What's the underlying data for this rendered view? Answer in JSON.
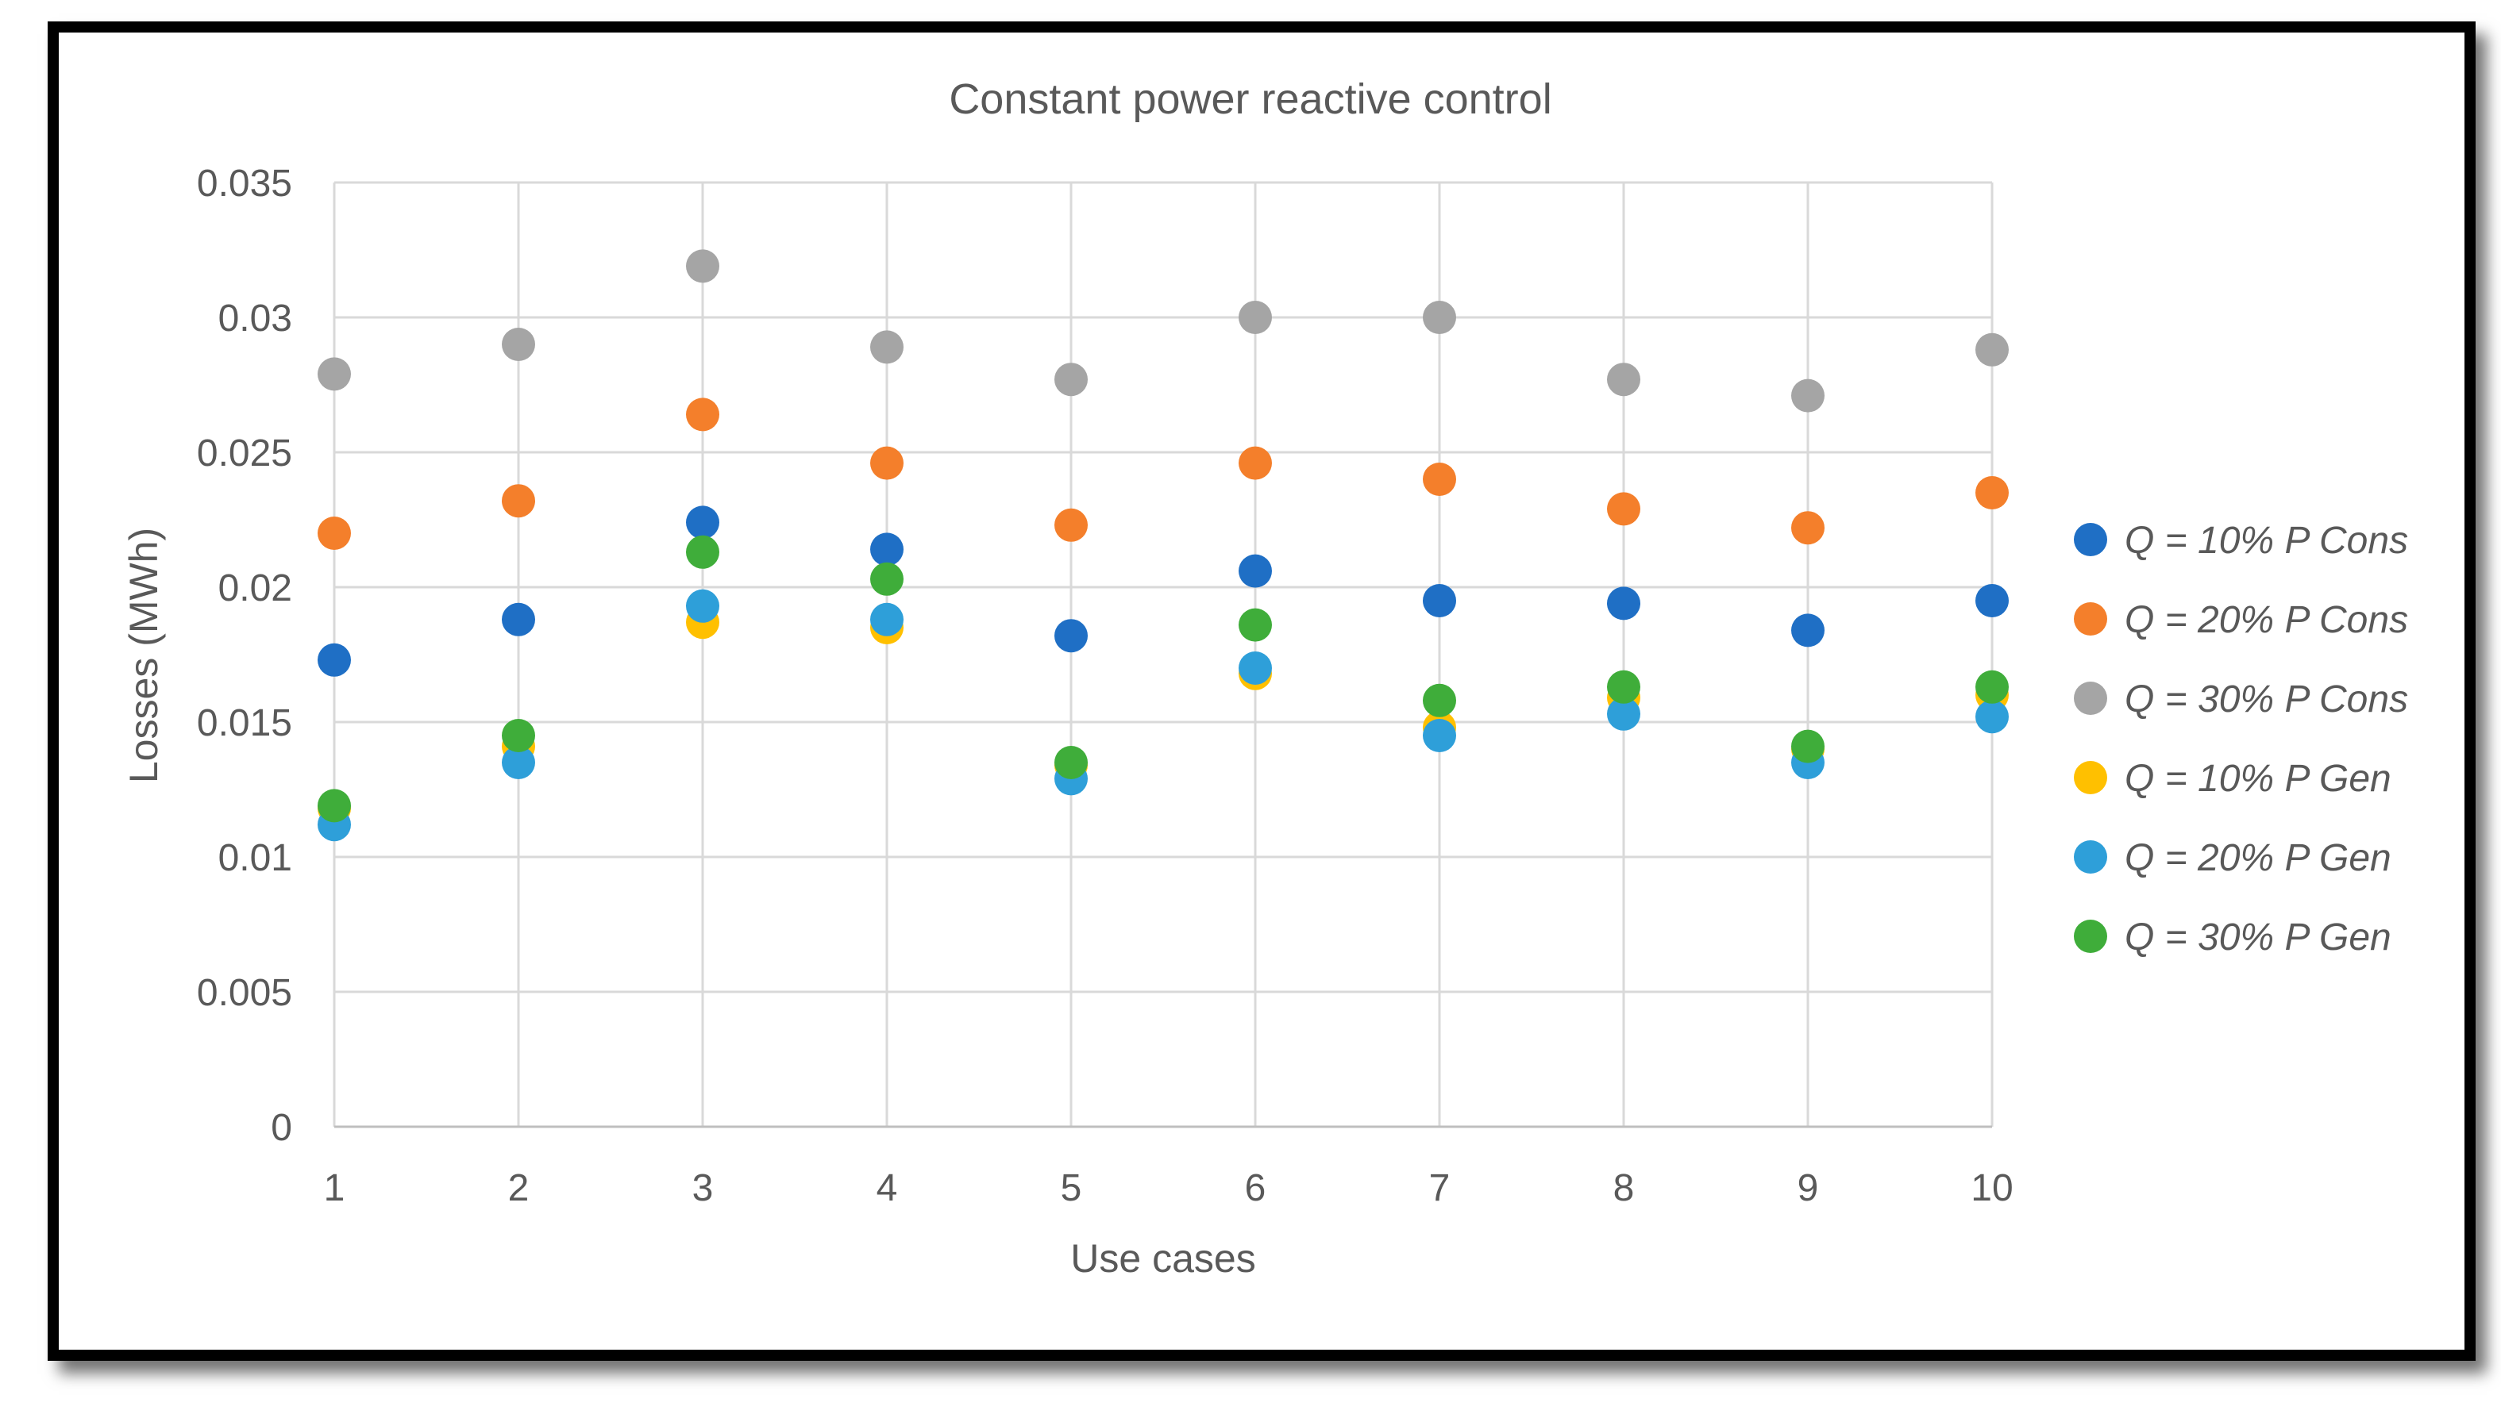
{
  "chart_data": {
    "type": "scatter",
    "title": "Constant power reactive control",
    "xlabel": "Use cases",
    "ylabel": "Losses (MWh)",
    "xlim": [
      1,
      10
    ],
    "ylim": [
      0,
      0.035
    ],
    "x_ticks": [
      "1",
      "2",
      "3",
      "4",
      "5",
      "6",
      "7",
      "8",
      "9",
      "10"
    ],
    "y_ticks": [
      "0",
      "0.005",
      "0.01",
      "0.015",
      "0.02",
      "0.025",
      "0.03",
      "0.035"
    ],
    "y_tick_values": [
      0,
      0.005,
      0.01,
      0.015,
      0.02,
      0.025,
      0.03,
      0.035
    ],
    "grid": true,
    "legend_position": "right",
    "x": [
      1,
      2,
      3,
      4,
      5,
      6,
      7,
      8,
      9,
      10
    ],
    "series": [
      {
        "name": "Q = 10% P Cons",
        "color": "#1f6fc5",
        "values": [
          0.0173,
          0.0188,
          0.0224,
          0.0214,
          0.0182,
          0.0206,
          0.0195,
          0.0194,
          0.0184,
          0.0195
        ]
      },
      {
        "name": "Q = 20% P Cons",
        "color": "#f47f2b",
        "values": [
          0.022,
          0.0232,
          0.0264,
          0.0246,
          0.0223,
          0.0246,
          0.024,
          0.0229,
          0.0222,
          0.0235
        ]
      },
      {
        "name": "Q = 30% P Cons",
        "color": "#a5a5a5",
        "values": [
          0.0279,
          0.029,
          0.0319,
          0.0289,
          0.0277,
          0.03,
          0.03,
          0.0277,
          0.0271,
          0.0288
        ]
      },
      {
        "name": "Q = 10% P Gen",
        "color": "#ffc000",
        "values": [
          0.0118,
          0.0141,
          0.0187,
          0.0185,
          0.0134,
          0.0168,
          0.0148,
          0.0159,
          0.014,
          0.016
        ]
      },
      {
        "name": "Q = 20% P Gen",
        "color": "#2e9fd9",
        "values": [
          0.0112,
          0.0135,
          0.0193,
          0.0188,
          0.0129,
          0.017,
          0.0145,
          0.0153,
          0.0135,
          0.0152
        ]
      },
      {
        "name": "Q = 30% P Gen",
        "color": "#3fad3a",
        "values": [
          0.0119,
          0.0145,
          0.0213,
          0.0203,
          0.0135,
          0.0186,
          0.0158,
          0.0163,
          0.0141,
          0.0163
        ]
      }
    ]
  }
}
